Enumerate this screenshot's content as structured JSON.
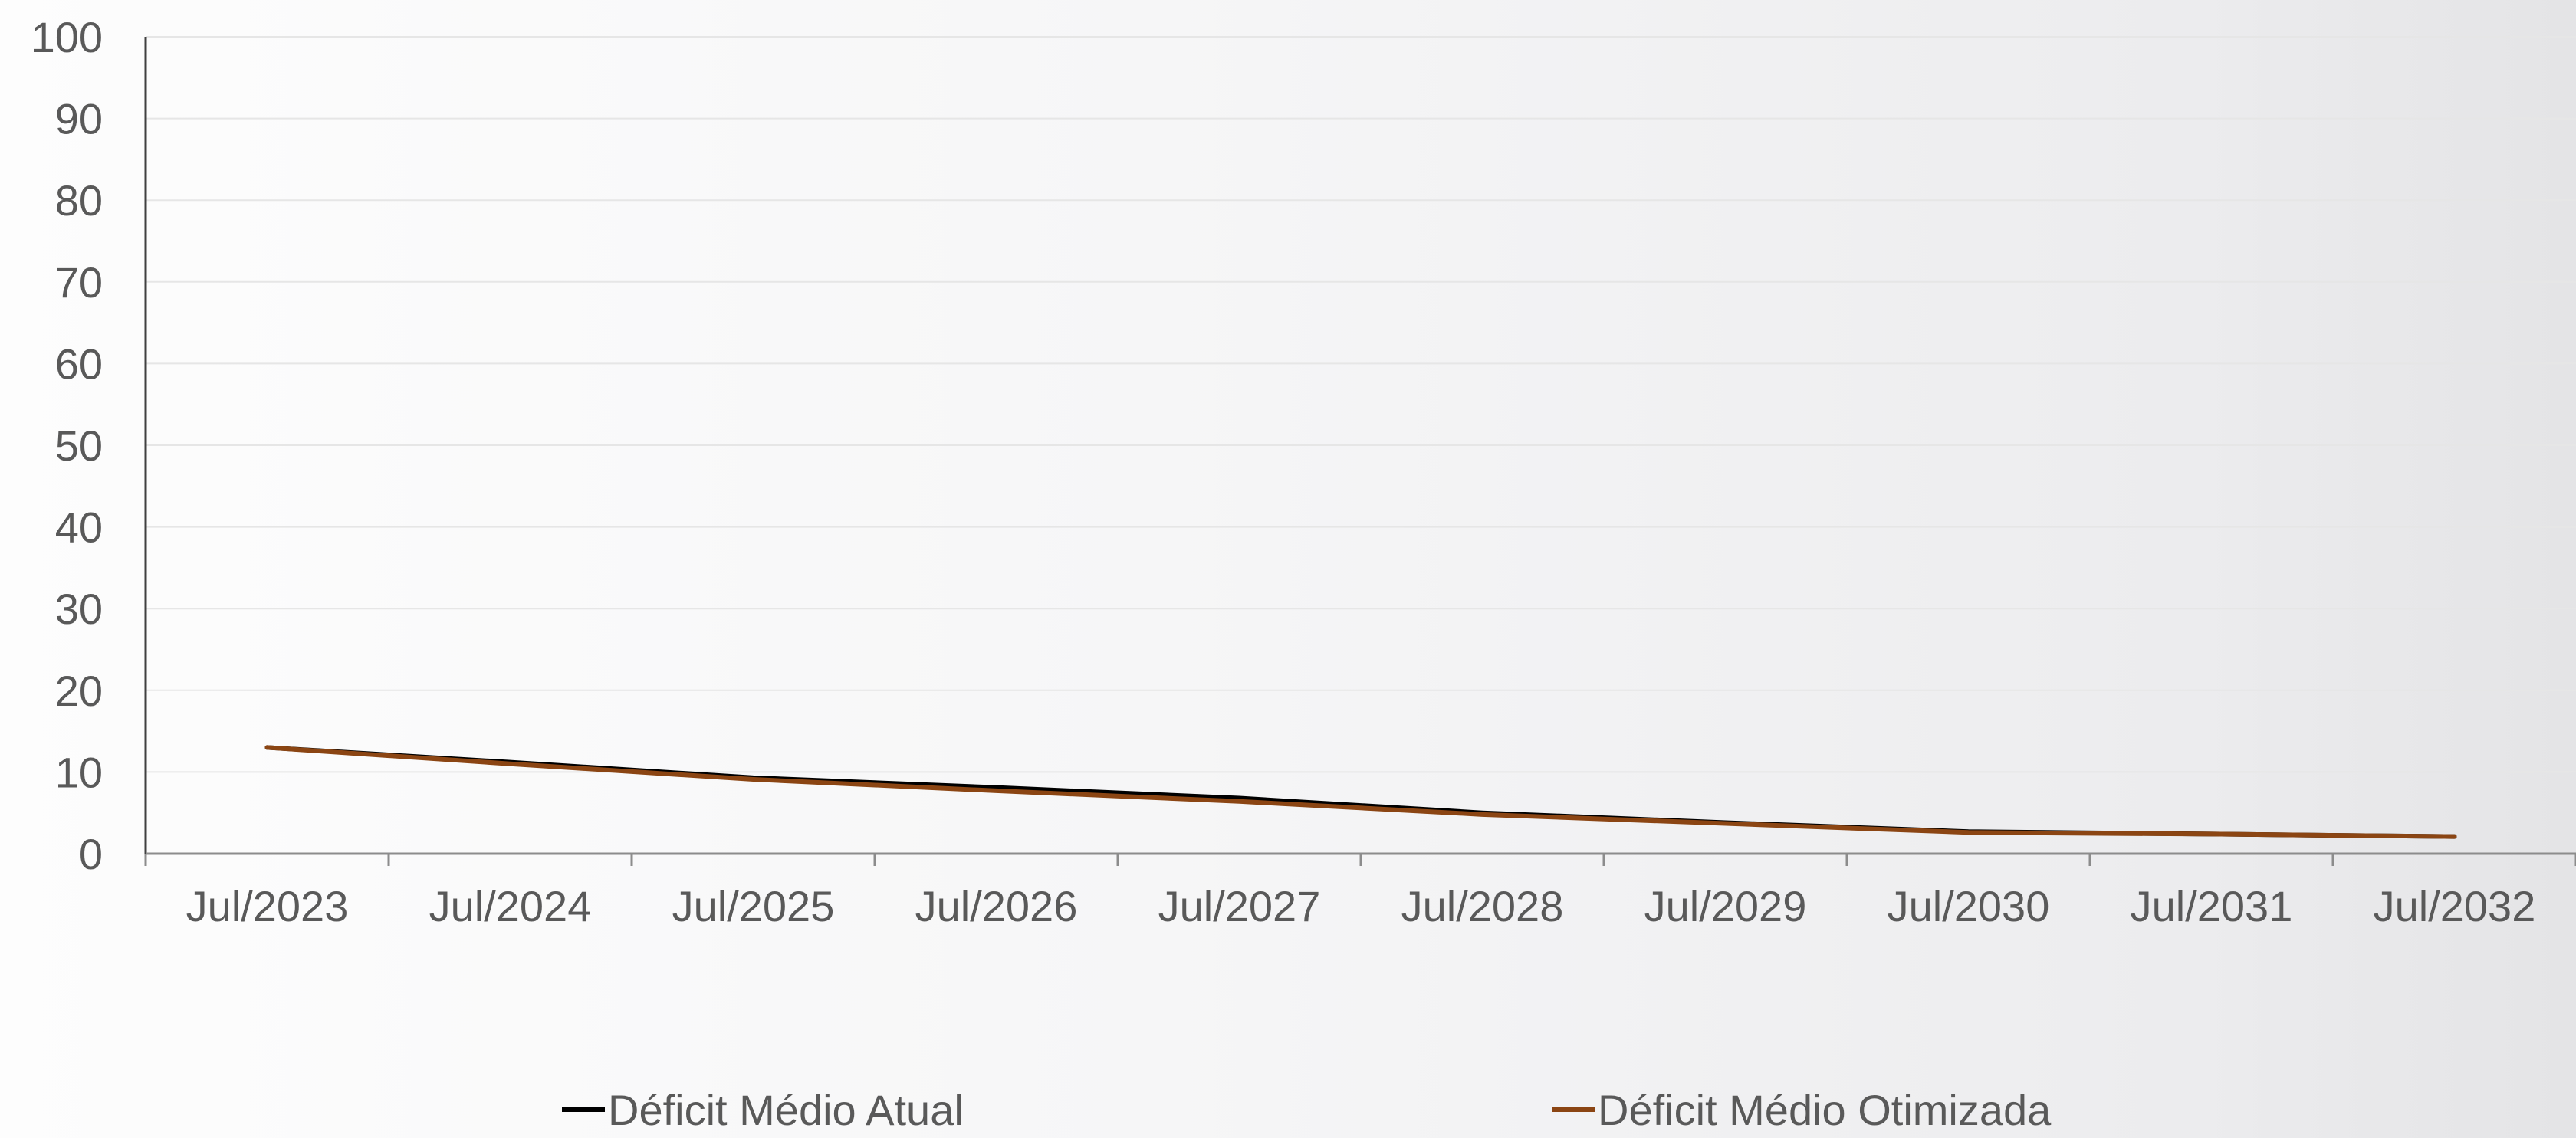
{
  "chart_data": {
    "type": "line",
    "title": "",
    "xlabel": "",
    "ylabel": "",
    "categories": [
      "Jul/2023",
      "Jul/2024",
      "Jul/2025",
      "Jul/2026",
      "Jul/2027",
      "Jul/2028",
      "Jul/2029",
      "Jul/2030",
      "Jul/2031",
      "Jul/2032"
    ],
    "ylim": [
      0,
      100
    ],
    "yticks": [
      0,
      10,
      20,
      30,
      40,
      50,
      60,
      70,
      80,
      90,
      100
    ],
    "grid": true,
    "legend_position": "bottom",
    "series": [
      {
        "name": "Déficit Médio Atual",
        "color": "#000000",
        "values": [
          13.0,
          11.2,
          9.3,
          8.1,
          6.8,
          5.0,
          3.8,
          2.7,
          2.4,
          2.1
        ]
      },
      {
        "name": "Déficit Médio Otimizada",
        "color": "#8B4513",
        "values": [
          13.0,
          11.0,
          9.1,
          7.7,
          6.4,
          4.8,
          3.7,
          2.6,
          2.4,
          2.1
        ]
      }
    ]
  }
}
